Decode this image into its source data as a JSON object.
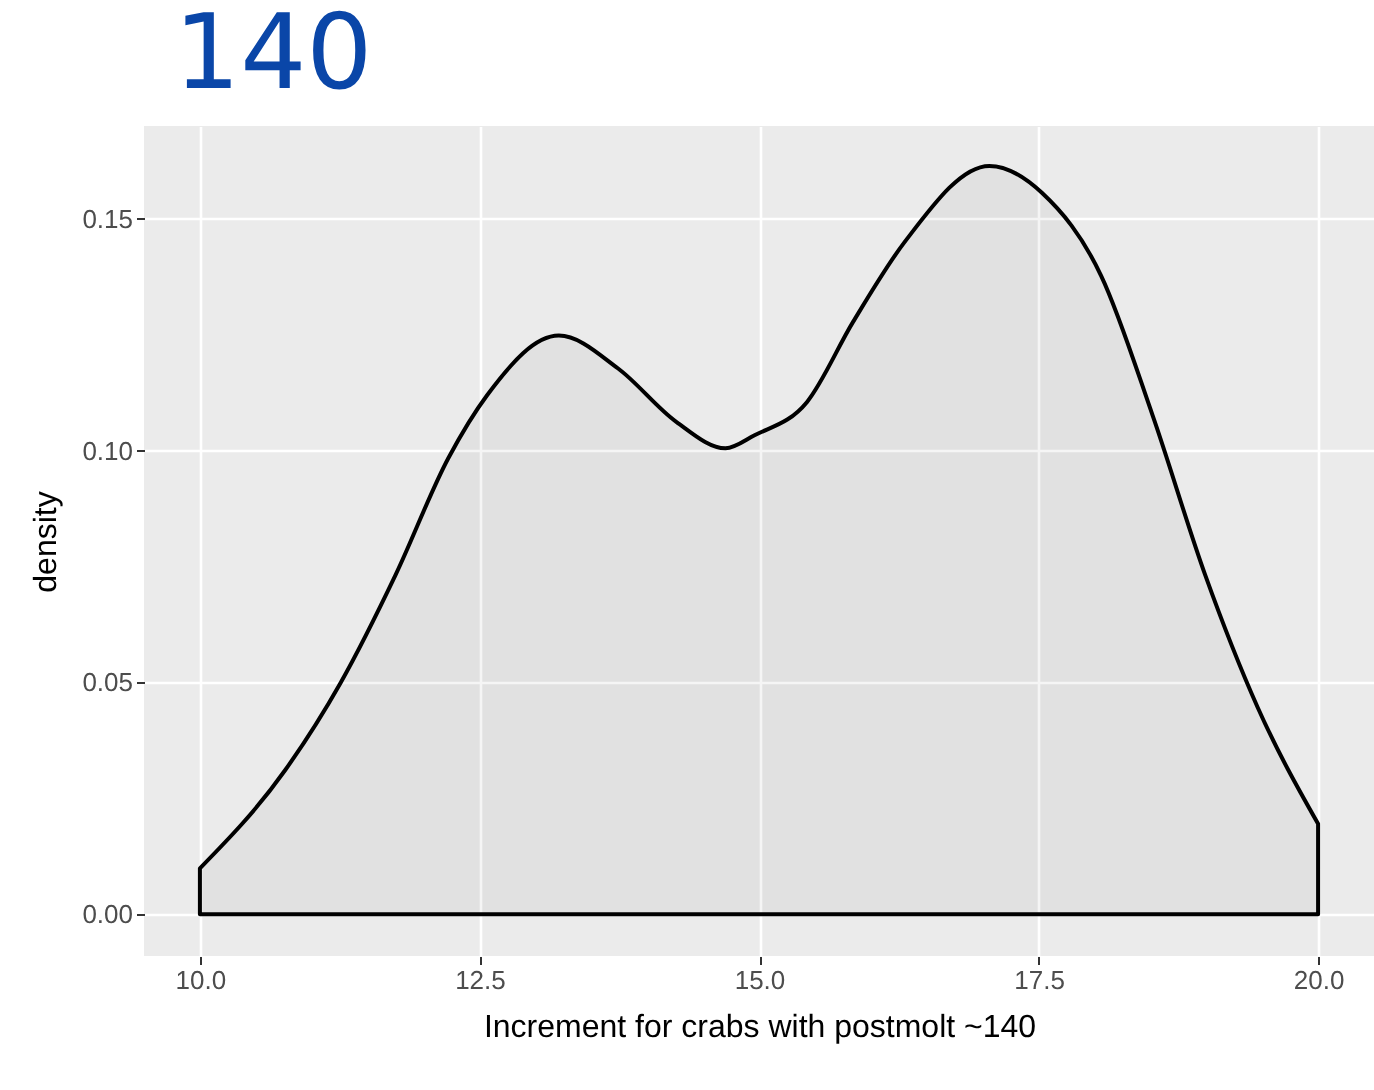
{
  "chart_data": {
    "type": "area",
    "title": "140",
    "xlabel": "Increment for crabs with postmolt ~140",
    "ylabel": "density",
    "x": [
      10,
      10.76,
      11.26,
      11.75,
      12.22,
      12.57,
      13.21,
      13.74,
      14.26,
      14.7,
      14.96,
      15.43,
      15.84,
      16.3,
      17.06,
      17.53,
      18.06,
      18.52,
      18.99,
      19.46,
      20
    ],
    "series": [
      {
        "color": "#000000",
        "values": [
          0.0099,
          0.031,
          0.05,
          0.0732,
          0.0983,
          0.112,
          0.1248,
          0.1177,
          0.1062,
          0.1005,
          0.1033,
          0.1105,
          0.1277,
          0.1449,
          0.1614,
          0.1556,
          0.1377,
          0.1076,
          0.0732,
          0.0446,
          0.0195
        ]
      }
    ],
    "xlim": [
      9.5,
      20.5
    ],
    "ylim": [
      -0.009,
      0.17
    ],
    "xticks": [
      {
        "value": 10,
        "label": "10.0"
      },
      12.5,
      {
        "value": 15,
        "label": "15.0"
      },
      17.5,
      {
        "value": 20,
        "label": "20.0"
      }
    ],
    "yticks": [
      {
        "value": 0,
        "label": "0.00"
      },
      0.05,
      {
        "value": 0.1,
        "label": "0.10"
      },
      0.15
    ],
    "grid": true
  }
}
